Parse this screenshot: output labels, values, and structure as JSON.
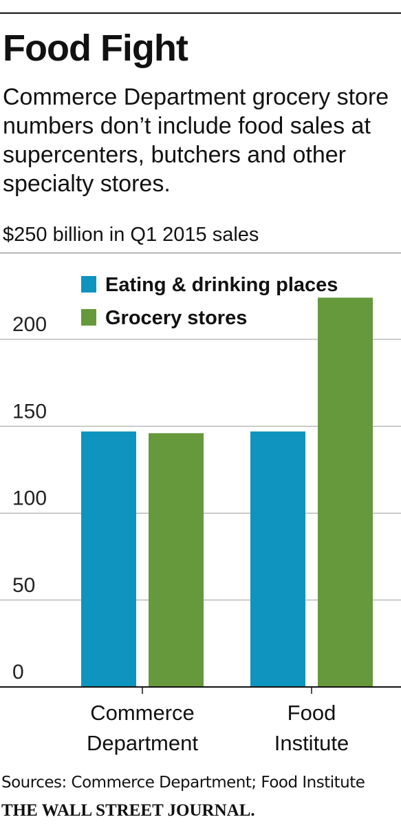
{
  "header": {
    "title": "Food Fight",
    "subtitle": "Commerce Department grocery store numbers don’t include food sales at supercenters, butchers and other specialty stores.",
    "unit_label": "$250 billion in Q1 2015 sales"
  },
  "chart_data": {
    "type": "bar",
    "categories": [
      "Commerce Department",
      "Food Institute"
    ],
    "category_lines": [
      [
        "Commerce",
        "Department"
      ],
      [
        "Food",
        "Institute"
      ]
    ],
    "series": [
      {
        "name": "Eating & drinking places",
        "color": "#0e94be",
        "values": [
          147,
          147
        ]
      },
      {
        "name": "Grocery stores",
        "color": "#65993c",
        "values": [
          146,
          224
        ]
      }
    ],
    "ylim": [
      0,
      225
    ],
    "yticks": [
      0,
      50,
      100,
      150,
      200
    ],
    "grid": true,
    "legend_position": "top-left"
  },
  "footer": {
    "sources": "Sources: Commerce Department; Food Institute",
    "brand": "THE WALL STREET JOURNAL."
  }
}
